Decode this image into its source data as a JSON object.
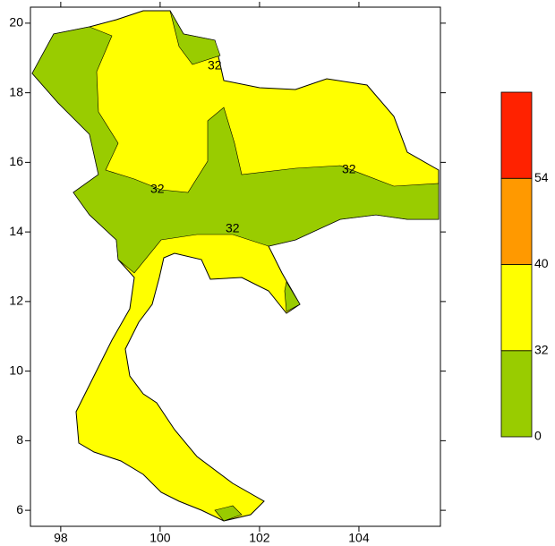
{
  "map": {
    "xlim": [
      97.39,
      105.64
    ],
    "ylim": [
      5.54,
      20.46
    ],
    "xticks": [
      98,
      100,
      102,
      104
    ],
    "yticks": [
      6,
      8,
      10,
      12,
      14,
      16,
      18,
      20
    ],
    "contour_labels": [
      "32",
      "32",
      "32",
      "32"
    ]
  },
  "colorbar": {
    "levels": [
      0,
      32,
      40,
      54
    ],
    "colors": [
      "#99cc00",
      "#ffff00",
      "#ff9900",
      "#ff2200"
    ]
  }
}
